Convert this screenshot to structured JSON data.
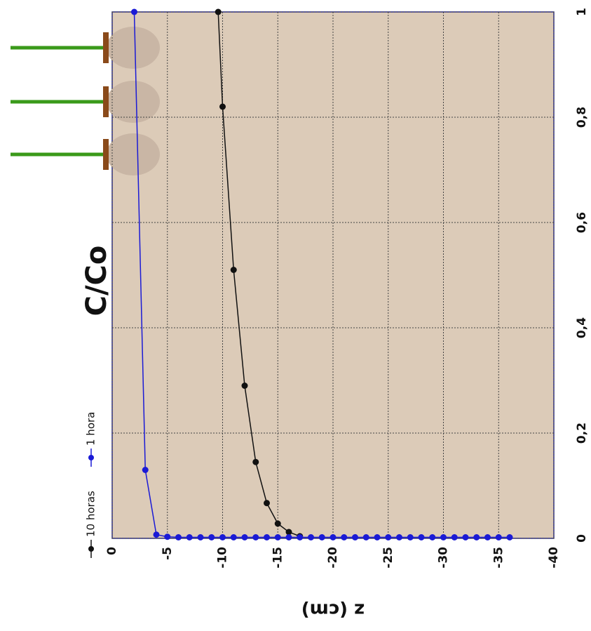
{
  "chart_data": {
    "type": "line",
    "title": "C/Co",
    "x_label": "z (cm)",
    "xlim": [
      0,
      -40
    ],
    "xticks": [
      0,
      -5,
      -10,
      -15,
      -20,
      -25,
      -30,
      -35,
      -40
    ],
    "ylim": [
      0,
      1
    ],
    "yticks": [
      0,
      {
        "value": 0.2,
        "label": "0,2"
      },
      {
        "value": 0.4,
        "label": "0,4"
      },
      {
        "value": 0.6,
        "label": "0,6"
      },
      {
        "value": 0.8,
        "label": "0,8"
      },
      1
    ],
    "grid": true,
    "legend": "top-left",
    "series": [
      {
        "name": "10 horas",
        "color": "#111111",
        "x": [
          -9.6,
          -10,
          -11,
          -12,
          -13,
          -14,
          -15,
          -16,
          -17
        ],
        "values": [
          1,
          0.82,
          0.51,
          0.29,
          0.145,
          0.067,
          0.028,
          0.012,
          0.004
        ]
      },
      {
        "name": "1 hora",
        "color": "#1a1ad6",
        "x": [
          -2,
          -3,
          -4,
          -5,
          -6,
          -7,
          -8,
          -9,
          -10,
          -11,
          -12,
          -13,
          -14,
          -15,
          -16,
          -17,
          -18,
          -19,
          -20,
          -21,
          -22,
          -23,
          -24,
          -25,
          -26,
          -27,
          -28,
          -29,
          -30,
          -31,
          -32,
          -33,
          -34,
          -35,
          -36
        ],
        "values": [
          1,
          0.13,
          0.007,
          0.003,
          0.002,
          0.002,
          0.002,
          0.002,
          0.002,
          0.002,
          0.002,
          0.002,
          0.002,
          0.002,
          0.002,
          0.002,
          0.002,
          0.002,
          0.002,
          0.002,
          0.002,
          0.002,
          0.002,
          0.002,
          0.002,
          0.002,
          0.002,
          0.002,
          0.002,
          0.002,
          0.002,
          0.002,
          0.002,
          0.002,
          0.002
        ]
      }
    ]
  }
}
